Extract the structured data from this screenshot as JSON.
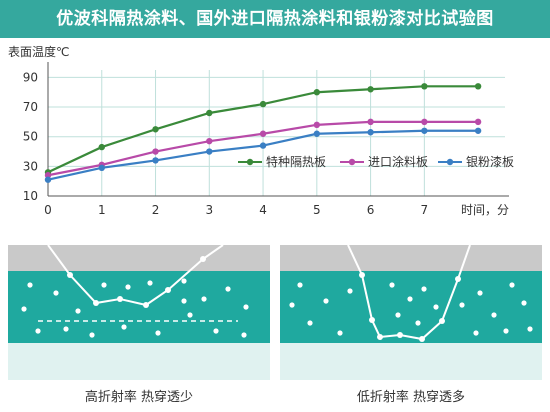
{
  "title": "优波科隔热涂料、国外进口隔热涂料和银粉漆对比试验图",
  "colors": {
    "title_bg": "#35a89e",
    "series_green": "#3a8a3a",
    "series_magenta": "#b84aa8",
    "series_blue": "#3a7fc4",
    "panel_teal": "#1fa99f",
    "panel_gray": "#c9c9c9"
  },
  "chart_data": {
    "type": "line",
    "ylabel": "表面温度℃",
    "xlabel": "时间，分",
    "x": [
      0,
      1,
      2,
      3,
      4,
      5,
      6,
      7,
      8
    ],
    "x_ticks": [
      "0",
      "1",
      "2",
      "3",
      "4",
      "5",
      "6",
      "7"
    ],
    "y_ticks": [
      "10",
      "30",
      "50",
      "70",
      "90"
    ],
    "ylim": [
      10,
      95
    ],
    "xlim": [
      0,
      8.5
    ],
    "grid": true,
    "legend_position": "right",
    "series": [
      {
        "name": "特种隔热板",
        "color": "#3a8a3a",
        "values": [
          26,
          43,
          55,
          66,
          72,
          80,
          82,
          84,
          84
        ]
      },
      {
        "name": "进口涂料板",
        "color": "#b84aa8",
        "values": [
          24,
          31,
          40,
          47,
          52,
          58,
          60,
          60,
          60
        ]
      },
      {
        "name": "银粉漆板",
        "color": "#3a7fc4",
        "values": [
          21,
          29,
          34,
          40,
          44,
          52,
          53,
          54,
          54
        ]
      }
    ]
  },
  "illustrations": {
    "left_caption": "高折射率 热穿透少",
    "right_caption": "低折射率 热穿透多"
  }
}
